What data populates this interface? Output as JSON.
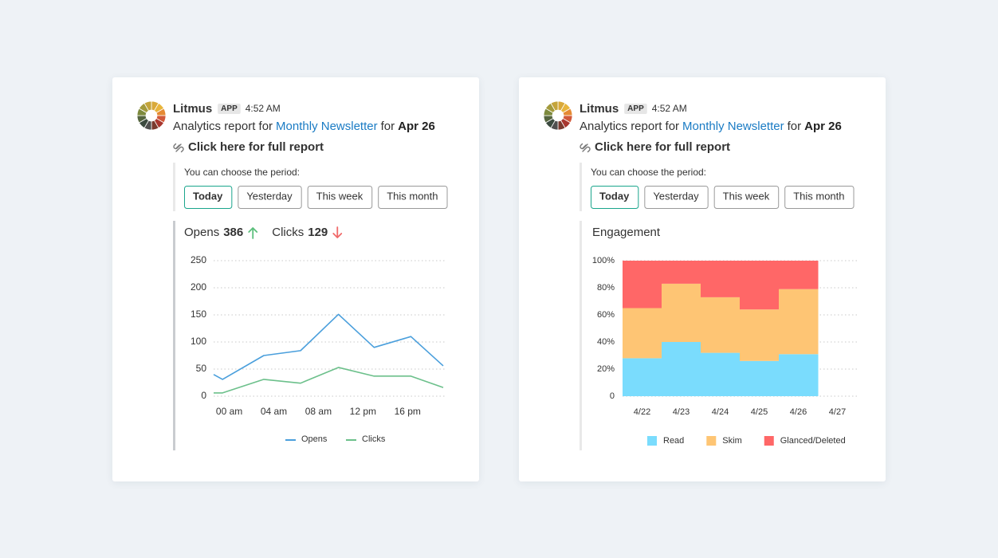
{
  "cards": [
    {
      "header": {
        "app_name": "Litmus",
        "badge": "APP",
        "time": "4:52 AM",
        "message": {
          "prefix": "Analytics report for",
          "link": "Monthly Newsletter",
          "middle": "for",
          "date": "Apr 26"
        },
        "report_link": "Click here for full report"
      },
      "period": {
        "prompt": "You can choose the period:",
        "options": [
          "Today",
          "Yesterday",
          "This week",
          "This month"
        ],
        "selected": 0
      },
      "chart_data": {
        "type": "line",
        "stats": [
          {
            "name": "Opens",
            "value": 386,
            "trend": "up",
            "color": "#5cbf7c"
          },
          {
            "name": "Clicks",
            "value": 129,
            "trend": "down",
            "color": "#f06a6a"
          }
        ],
        "x": [
          -1.4,
          -0.6,
          3.1,
          6.4,
          9.8,
          13,
          16.3,
          19.2
        ],
        "xlim": [
          -1.4,
          19.2
        ],
        "xticks": [
          {
            "value": 0,
            "label": "00 am"
          },
          {
            "value": 4,
            "label": "04 am"
          },
          {
            "value": 8,
            "label": "08 am"
          },
          {
            "value": 12,
            "label": "12 pm"
          },
          {
            "value": 16,
            "label": "16 pm"
          }
        ],
        "ylim": [
          0,
          250
        ],
        "yticks": [
          0,
          50,
          100,
          150,
          200,
          250
        ],
        "grid": true,
        "series": [
          {
            "name": "Opens",
            "color": "#4a9fdc",
            "values": [
              40,
              31,
              75,
              84,
              151,
              90,
              110,
              56
            ]
          },
          {
            "name": "Clicks",
            "color": "#6cc08b",
            "values": [
              6,
              6,
              31,
              24,
              53,
              37,
              37,
              16
            ]
          }
        ]
      }
    },
    {
      "header": {
        "app_name": "Litmus",
        "badge": "APP",
        "time": "4:52 AM",
        "message": {
          "prefix": "Analytics report for",
          "link": "Monthly Newsletter",
          "middle": "for",
          "date": "Apr 26"
        },
        "report_link": "Click here for full report"
      },
      "period": {
        "prompt": "You can choose the period:",
        "options": [
          "Today",
          "Yesterday",
          "This week",
          "This month"
        ],
        "selected": 0
      },
      "chart_data": {
        "type": "stacked-bar",
        "title": "Engagement",
        "categories": [
          "4/22",
          "4/23",
          "4/24",
          "4/25",
          "4/26",
          "4/27"
        ],
        "ylim": [
          0,
          100
        ],
        "yticks": [
          0,
          {
            "value": 20,
            "label": "20%"
          },
          {
            "value": 40,
            "label": "40%"
          },
          {
            "value": 60,
            "label": "60%"
          },
          {
            "value": 80,
            "label": "80%"
          },
          {
            "value": 100,
            "label": "100%"
          }
        ],
        "grid": true,
        "series": [
          {
            "name": "Read",
            "color": "#7adcfd",
            "values": [
              28,
              40,
              32,
              26,
              31,
              null
            ]
          },
          {
            "name": "Skim",
            "color": "#fec574",
            "values": [
              37,
              43,
              41,
              38,
              48,
              null
            ]
          },
          {
            "name": "Glanced/Deleted",
            "color": "#ff6767",
            "values": [
              35,
              17,
              27,
              36,
              21,
              null
            ]
          }
        ]
      }
    }
  ]
}
